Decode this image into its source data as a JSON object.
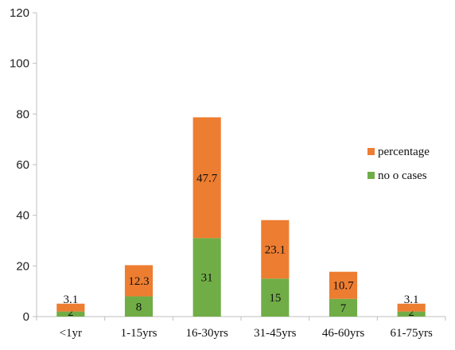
{
  "chart_data": {
    "type": "bar",
    "stacked": true,
    "categories": [
      "<1yr",
      "1-15yrs",
      "16-30yrs",
      "31-45yrs",
      "46-60yrs",
      "61-75yrs"
    ],
    "series": [
      {
        "name": "no o cases",
        "values": [
          2,
          8,
          31,
          15,
          7,
          2
        ],
        "color": "#70AD47"
      },
      {
        "name": "percentage",
        "values": [
          3.1,
          12.3,
          47.7,
          23.1,
          10.7,
          3.1
        ],
        "color": "#ED7D31"
      }
    ],
    "ylim": [
      0,
      120
    ],
    "yticks": [
      0,
      20,
      40,
      60,
      80,
      100,
      120
    ],
    "grid": false,
    "legend_position": "right",
    "legend_order": [
      "percentage",
      "no o cases"
    ],
    "axis_color": "#BFBFBF",
    "title": "",
    "xlabel": "",
    "ylabel": ""
  }
}
